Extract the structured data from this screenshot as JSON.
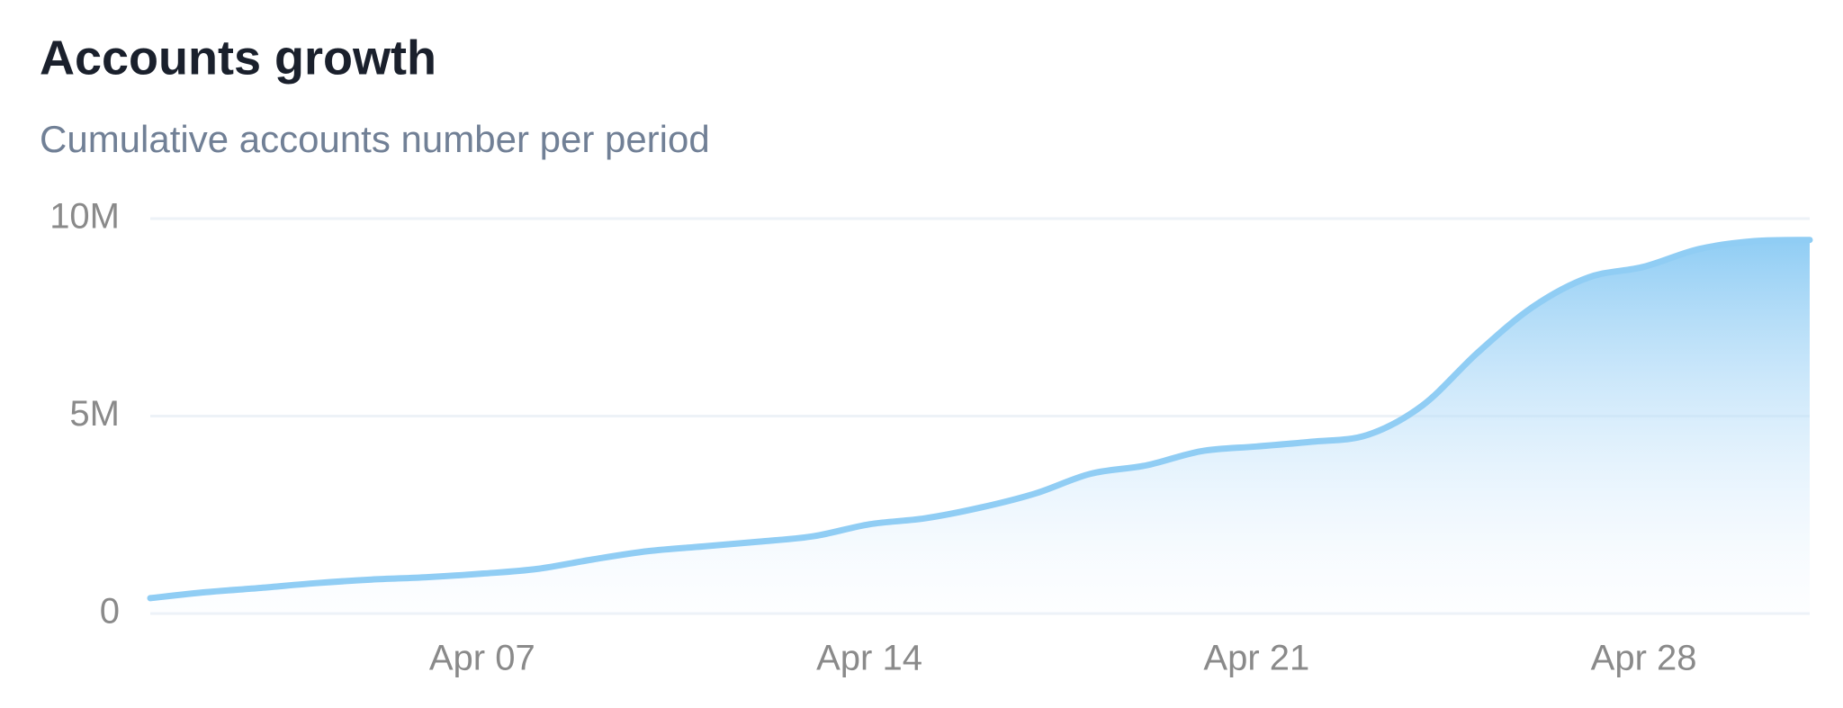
{
  "chart_data": {
    "type": "area",
    "title": "Accounts growth",
    "subtitle": "Cumulative accounts number per period",
    "categories": [
      null,
      null,
      null,
      null,
      null,
      null,
      "Apr 07",
      null,
      null,
      null,
      null,
      null,
      null,
      "Apr 14",
      null,
      null,
      null,
      null,
      null,
      null,
      "Apr 21",
      null,
      null,
      null,
      null,
      null,
      null,
      "Apr 28",
      null,
      null,
      null
    ],
    "series": [
      {
        "color": "#90cdf4",
        "values": [
          390000,
          540000,
          650000,
          770000,
          860000,
          920000,
          1010000,
          1130000,
          1370000,
          1580000,
          1700000,
          1820000,
          1960000,
          2260000,
          2410000,
          2680000,
          3040000,
          3540000,
          3750000,
          4110000,
          4230000,
          4350000,
          4520000,
          5270000,
          6610000,
          7770000,
          8510000,
          8780000,
          9230000,
          9430000,
          9460000
        ]
      }
    ],
    "ylim": [
      0,
      10000000
    ],
    "yticks": [
      0,
      {
        "value": 5000000,
        "label": "5M"
      },
      {
        "value": 10000000,
        "label": "10M"
      }
    ],
    "grid": true
  }
}
